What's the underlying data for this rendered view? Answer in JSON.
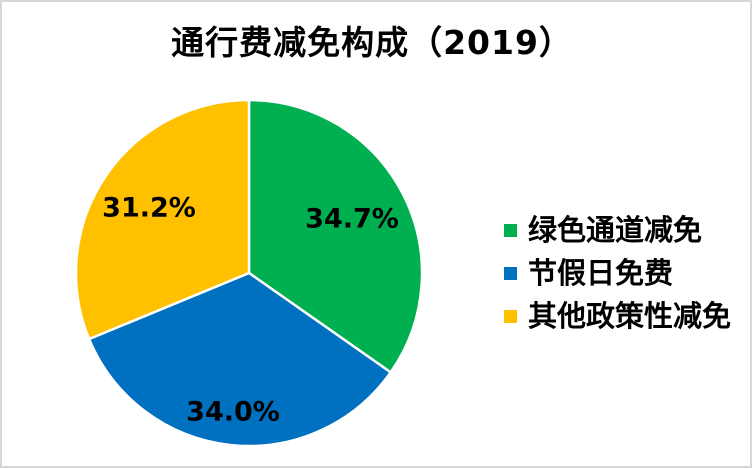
{
  "window": {
    "background_color": "#ffffff",
    "frame_color": "#d7d7d7"
  },
  "chart_data": {
    "type": "pie",
    "title": "通行费减免构成（2019）",
    "labels": [
      "绿色通道减免",
      "节假日免费",
      "其他政策性减免"
    ],
    "values": [
      34.7,
      34.0,
      31.2
    ],
    "data_labels": [
      "34.7%",
      "34.0%",
      "31.2%"
    ],
    "colors": [
      "#00B050",
      "#0070C0",
      "#FFC000"
    ],
    "data_label_color": "#000000",
    "slice_border_color": "#ffffff",
    "start_angle_deg": 0,
    "direction": "clockwise",
    "legend_position": "right",
    "legend_marker": "square"
  }
}
